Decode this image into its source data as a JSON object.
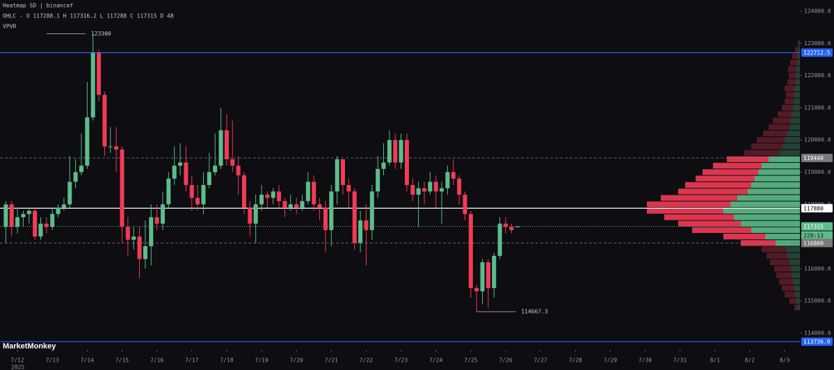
{
  "chart_data": {
    "type": "candlestick",
    "header": "Heatmap SD | binancef",
    "ohlc_line": "OHLC - O 117288.1 H 117316.2 L 117288 C 117315 D 48",
    "indicator": "VPVR",
    "watermark": "MarketMonkey",
    "year": "2025",
    "up_color": "#5dbd8a",
    "down_color": "#f23b56",
    "x": [
      -8,
      -4,
      0,
      4,
      8,
      12,
      16,
      20,
      24,
      28,
      32,
      36,
      40,
      44,
      48,
      52,
      56,
      60,
      64,
      68,
      72,
      76,
      80,
      84,
      88,
      92,
      96,
      100,
      104,
      108,
      112,
      116,
      120,
      124,
      128,
      132,
      136,
      140,
      144,
      148,
      152,
      156,
      160,
      164,
      168,
      172,
      176,
      180,
      184,
      188,
      192,
      196,
      200,
      204,
      208,
      212,
      216,
      220,
      224,
      228,
      232,
      236,
      240,
      244,
      248,
      252,
      256,
      260,
      264,
      268,
      272,
      276,
      280,
      284,
      288,
      292,
      296,
      300,
      304,
      308,
      312,
      316,
      320,
      324,
      328,
      332,
      336,
      340,
      344
    ],
    "open": [
      117300,
      118000,
      117300,
      117600,
      117700,
      117800,
      117000,
      117400,
      117300,
      117700,
      117900,
      118000,
      118700,
      119000,
      119200,
      120700,
      122700,
      121400,
      119800,
      119800,
      119700,
      117300,
      116900,
      117000,
      116300,
      116700,
      117600,
      117400,
      118000,
      118800,
      119200,
      119300,
      118600,
      118200,
      118000,
      118600,
      119000,
      119200,
      120300,
      119400,
      119200,
      118900,
      117900,
      117400,
      118000,
      118300,
      118200,
      118400,
      118100,
      117900,
      118000,
      117900,
      118100,
      118700,
      118000,
      117900,
      117200,
      118400,
      119400,
      118600,
      118400,
      116800,
      117500,
      117200,
      118400,
      119100,
      119300,
      120000,
      119300,
      120000,
      118600,
      118300,
      118500,
      118400,
      118700,
      118400,
      118500,
      119000,
      118800,
      118300,
      117700,
      115400,
      115300,
      116200,
      115400,
      116400,
      117400,
      117300,
      117288.1
    ],
    "high": [
      118100,
      118100,
      117900,
      117800,
      117900,
      117900,
      117600,
      117600,
      117900,
      118000,
      118200,
      119500,
      119400,
      120200,
      121800,
      123300,
      122800,
      121500,
      120400,
      120400,
      119800,
      117600,
      117300,
      117300,
      117500,
      118000,
      118000,
      118400,
      119000,
      119800,
      119900,
      119800,
      118900,
      118600,
      119000,
      119600,
      120200,
      121000,
      120800,
      120600,
      119500,
      119000,
      118100,
      118300,
      118600,
      118400,
      118500,
      118600,
      118200,
      118300,
      118200,
      118300,
      119000,
      118900,
      118200,
      118100,
      118600,
      119500,
      119400,
      118800,
      118500,
      117800,
      118000,
      118600,
      119500,
      119900,
      120300,
      120200,
      120200,
      120200,
      118800,
      118700,
      118700,
      119000,
      118900,
      118700,
      119200,
      119400,
      118900,
      118400,
      117800,
      115500,
      116300,
      116300,
      116500,
      117600,
      117600,
      117400,
      117316.2
    ],
    "low": [
      116800,
      117000,
      117100,
      117300,
      117400,
      116900,
      116900,
      117100,
      117200,
      117600,
      117800,
      117900,
      118500,
      118900,
      119100,
      120600,
      121200,
      119500,
      119600,
      119000,
      116800,
      116400,
      116600,
      115700,
      116000,
      116100,
      117200,
      117200,
      117900,
      118600,
      118900,
      118400,
      117800,
      117800,
      117700,
      118500,
      118900,
      119100,
      119200,
      119000,
      118300,
      117700,
      117000,
      116800,
      117800,
      117900,
      118000,
      117900,
      117600,
      117800,
      117700,
      117800,
      118000,
      117800,
      117500,
      116500,
      116700,
      118000,
      118300,
      117900,
      116600,
      116500,
      116100,
      116900,
      118200,
      118900,
      119200,
      119100,
      119100,
      118400,
      118100,
      117300,
      118000,
      118300,
      117900,
      117400,
      118300,
      118600,
      118000,
      117500,
      115100,
      114667.3,
      114900,
      114800,
      115100,
      116300,
      117100,
      117100,
      117288
    ],
    "close": [
      118000,
      117300,
      117600,
      117700,
      117800,
      117000,
      117400,
      117300,
      117700,
      117900,
      118000,
      118700,
      119000,
      119200,
      120700,
      122700,
      121400,
      119800,
      119800,
      119700,
      117300,
      116900,
      117000,
      116300,
      116700,
      117600,
      117400,
      118000,
      118800,
      119200,
      119300,
      118600,
      118200,
      118000,
      118600,
      119000,
      119200,
      120300,
      119400,
      119200,
      118900,
      117900,
      117400,
      118000,
      118300,
      118200,
      118400,
      118100,
      117900,
      118000,
      117900,
      118100,
      118700,
      118000,
      117900,
      117200,
      118400,
      119400,
      118600,
      118400,
      116800,
      117500,
      117200,
      118400,
      119100,
      119300,
      120000,
      119300,
      120000,
      118600,
      118300,
      118500,
      118400,
      118700,
      118400,
      118500,
      119000,
      118800,
      118300,
      117700,
      115400,
      115300,
      116200,
      115400,
      116400,
      117400,
      117300,
      117200,
      117315
    ],
    "xlim": [
      -12,
      538.5
    ],
    "ylim": [
      113655,
      124345
    ],
    "xticks": [
      {
        "value": 0,
        "label": "7/12"
      },
      {
        "value": 24,
        "label": "7/13"
      },
      {
        "value": 48,
        "label": "7/14"
      },
      {
        "value": 72,
        "label": "7/15"
      },
      {
        "value": 96,
        "label": "7/16"
      },
      {
        "value": 120,
        "label": "7/17"
      },
      {
        "value": 144,
        "label": "7/18"
      },
      {
        "value": 168,
        "label": "7/19"
      },
      {
        "value": 192,
        "label": "7/20"
      },
      {
        "value": 216,
        "label": "7/21"
      },
      {
        "value": 240,
        "label": "7/22"
      },
      {
        "value": 264,
        "label": "7/23"
      },
      {
        "value": 288,
        "label": "7/24"
      },
      {
        "value": 312,
        "label": "7/25"
      },
      {
        "value": 336,
        "label": "7/26"
      },
      {
        "value": 360,
        "label": "7/27"
      },
      {
        "value": 384,
        "label": "7/28"
      },
      {
        "value": 408,
        "label": "7/29"
      },
      {
        "value": 432,
        "label": "7/30"
      },
      {
        "value": 456,
        "label": "7/31"
      },
      {
        "value": 480,
        "label": "8/1"
      },
      {
        "value": 504,
        "label": "8/2"
      },
      {
        "value": 528,
        "label": "8/3"
      }
    ],
    "yticks": [
      {
        "value": 124000,
        "label": "124000.0"
      },
      {
        "value": 123000,
        "label": "123000.0"
      },
      {
        "value": 122000,
        "label": "122000.0"
      },
      {
        "value": 121000,
        "label": "121000.0"
      },
      {
        "value": 120000,
        "label": "120000.0"
      },
      {
        "value": 119000,
        "label": "119000.0"
      },
      {
        "value": 118000,
        "label": "118000.0"
      },
      {
        "value": 117000,
        "label": "117000.0"
      },
      {
        "value": 116000,
        "label": "116000.0"
      },
      {
        "value": 115000,
        "label": "115000.0"
      },
      {
        "value": 114000,
        "label": "114000.0"
      }
    ],
    "levels": [
      {
        "value": 122712.5,
        "style": "solid",
        "color": "#2962ff"
      },
      {
        "value": 119440,
        "style": "dashed",
        "color": "#7a7a7a"
      },
      {
        "value": 117880,
        "style": "solid",
        "color": "#ffffff"
      },
      {
        "value": 117315,
        "style": "dotted",
        "color": "#5dbd8a"
      },
      {
        "value": 116800,
        "style": "dashed",
        "color": "#7a7a7a"
      },
      {
        "value": 113736.9,
        "style": "solid",
        "color": "#2962ff"
      }
    ],
    "countdown": "229:13",
    "annotations": [
      {
        "x": 20,
        "value": 123300,
        "label": "123300"
      },
      {
        "x": 316,
        "value": 114667.3,
        "label": "114667.3"
      }
    ],
    "volume_profile": {
      "value_area": [
        116800,
        119440
      ],
      "prices": [
        123000,
        122800,
        122600,
        122400,
        122200,
        122000,
        121800,
        121600,
        121400,
        121200,
        121000,
        120800,
        120600,
        120400,
        120200,
        120000,
        119800,
        119600,
        119400,
        119200,
        119000,
        118800,
        118600,
        118400,
        118200,
        118000,
        117800,
        117600,
        117400,
        117200,
        117000,
        116800,
        116600,
        116400,
        116200,
        116000,
        115800,
        115600,
        115400,
        115200,
        115000,
        114800
      ],
      "sell": [
        2,
        5,
        8,
        10,
        12,
        10,
        12,
        14,
        12,
        14,
        16,
        20,
        25,
        30,
        35,
        40,
        45,
        50,
        60,
        70,
        80,
        85,
        95,
        100,
        110,
        120,
        110,
        100,
        90,
        85,
        60,
        50,
        35,
        30,
        28,
        25,
        22,
        20,
        18,
        15,
        10,
        5
      ],
      "buy": [
        1,
        2,
        3,
        4,
        5,
        6,
        6,
        8,
        8,
        8,
        10,
        12,
        14,
        15,
        18,
        22,
        25,
        30,
        45,
        55,
        60,
        65,
        70,
        75,
        90,
        100,
        110,
        95,
        85,
        70,
        50,
        35,
        20,
        18,
        15,
        12,
        12,
        10,
        8,
        7,
        5,
        3
      ]
    }
  }
}
